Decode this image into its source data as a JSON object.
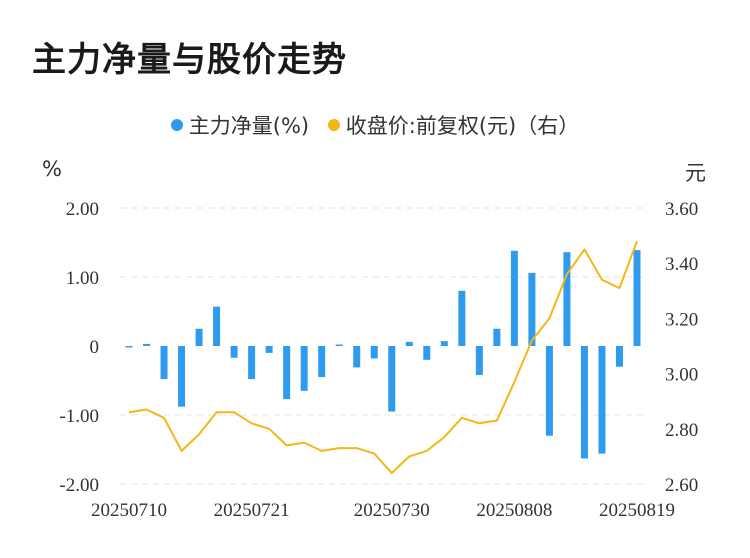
{
  "title": "主力净量与股价走势",
  "legend": {
    "bar_label": "主力净量(%)",
    "line_label": "收盘价:前复权(元)（右）"
  },
  "units": {
    "left": "%",
    "right": "元"
  },
  "colors": {
    "bar": "#2f9bef",
    "line": "#f5b716",
    "grid": "#e6e6e6"
  },
  "chart_data": {
    "type": "bar",
    "categories_shown": [
      "20250710",
      "20250721",
      "20250730",
      "20250808",
      "20250819"
    ],
    "y_left": {
      "ylim": [
        -2,
        2
      ],
      "ticks": [
        "2.00",
        "1.00",
        "0",
        "-1.00",
        "-2.00"
      ]
    },
    "y_right": {
      "ylim": [
        2.6,
        3.6
      ],
      "ticks": [
        "3.60",
        "3.40",
        "3.20",
        "3.00",
        "2.80",
        "2.60"
      ]
    },
    "series": [
      {
        "name": "主力净量(%)",
        "type": "bar",
        "axis": "left",
        "values": [
          -0.02,
          0.03,
          -0.48,
          -0.88,
          0.25,
          0.57,
          -0.17,
          -0.48,
          -0.1,
          -0.77,
          -0.65,
          -0.45,
          0.02,
          -0.31,
          -0.18,
          -0.95,
          0.06,
          -0.2,
          0.07,
          0.8,
          -0.42,
          0.25,
          1.38,
          1.06,
          -1.3,
          1.36,
          -1.63,
          -1.56,
          -0.3,
          1.39
        ]
      },
      {
        "name": "收盘价:前复权(元)（右）",
        "type": "line",
        "axis": "right",
        "values": [
          2.86,
          2.87,
          2.84,
          2.72,
          2.78,
          2.86,
          2.86,
          2.82,
          2.8,
          2.74,
          2.75,
          2.72,
          2.73,
          2.73,
          2.71,
          2.64,
          2.7,
          2.72,
          2.77,
          2.84,
          2.82,
          2.83,
          2.97,
          3.12,
          3.2,
          3.36,
          3.45,
          3.34,
          3.31,
          3.48
        ]
      }
    ]
  }
}
